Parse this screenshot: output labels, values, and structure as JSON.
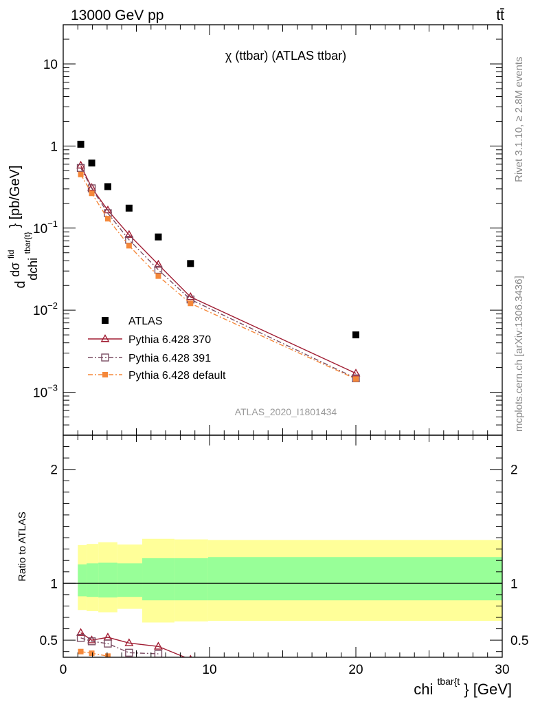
{
  "header": {
    "left": "13000 GeV pp",
    "right": "tt̄"
  },
  "side_labels": {
    "rivet": "Rivet 3.1.10, ≥ 2.8M events",
    "mcplots": "mcplots.cern.ch [arXiv:1306.3436]"
  },
  "chart_data": [
    {
      "type": "scatter",
      "title": "χ (ttbar) (ATLAS ttbar)",
      "watermark": "ATLAS_2020_I1801434",
      "ylabel_parts": {
        "d": "d",
        "sigma": "dσ",
        "fid": "fid",
        "dchi": "dchi",
        "sub": "tbar{t}",
        "unit": "} [pb/GeV]"
      },
      "xscale": "linear",
      "yscale": "log",
      "xlim": [
        0,
        30
      ],
      "ylim": [
        0.0003,
        30
      ],
      "x_ticks": [
        0,
        10,
        20,
        30
      ],
      "y_ticks": [
        {
          "value": 0.001,
          "base": "10",
          "exp": "−3"
        },
        {
          "value": 0.01,
          "base": "10",
          "exp": "−2"
        },
        {
          "value": 0.1,
          "base": "10",
          "exp": "−1"
        },
        {
          "value": 1,
          "label": "1"
        },
        {
          "value": 10,
          "label": "10"
        }
      ],
      "legend_position": "lower-left",
      "series": [
        {
          "name": "ATLAS",
          "color": "#000000",
          "marker": "filled-square",
          "line": "none",
          "x": [
            1.2,
            1.95,
            3.05,
            4.5,
            6.5,
            8.7,
            20.0
          ],
          "y": [
            1.05,
            0.62,
            0.32,
            0.175,
            0.078,
            0.037,
            0.005
          ]
        },
        {
          "name": "Pythia 6.428 370",
          "color": "#a01c32",
          "marker": "open-triangle",
          "line": "solid",
          "x": [
            1.2,
            1.95,
            3.05,
            4.5,
            6.5,
            8.7,
            20.0
          ],
          "y": [
            0.58,
            0.31,
            0.165,
            0.083,
            0.036,
            0.0145,
            0.0017
          ]
        },
        {
          "name": "Pythia 6.428 391",
          "color": "#7a4d63",
          "marker": "open-square",
          "line": "dashdot",
          "x": [
            1.2,
            1.95,
            3.05,
            4.5,
            6.5,
            8.7,
            20.0
          ],
          "y": [
            0.54,
            0.305,
            0.152,
            0.072,
            0.031,
            0.0135,
            0.00148
          ]
        },
        {
          "name": "Pythia 6.428 default",
          "color": "#f5883a",
          "marker": "filled-circle",
          "line": "dashdot",
          "x": [
            1.2,
            1.95,
            3.05,
            4.5,
            6.5,
            8.7,
            20.0
          ],
          "y": [
            0.45,
            0.265,
            0.13,
            0.061,
            0.026,
            0.0121,
            0.00145
          ]
        }
      ]
    },
    {
      "type": "line",
      "ylabel": "Ratio to ATLAS",
      "xlabel_parts": {
        "base": "chi",
        "sup": "tbar{t",
        "unit": "} [GeV]"
      },
      "xlim": [
        0,
        30
      ],
      "ylim": [
        0.35,
        2.3
      ],
      "x_ticks": [
        0,
        10,
        20,
        30
      ],
      "y_ticks": [
        0.5,
        1,
        2
      ],
      "reference": 1,
      "bands": {
        "bin_edges": [
          1.0,
          1.6,
          2.4,
          3.7,
          5.4,
          7.6,
          9.9,
          30.0
        ],
        "stat_lo": [
          0.885,
          0.88,
          0.875,
          0.88,
          0.85,
          0.85,
          0.85
        ],
        "stat_hi": [
          1.165,
          1.175,
          1.18,
          1.175,
          1.22,
          1.22,
          1.23
        ],
        "total_lo": [
          0.765,
          0.755,
          0.745,
          0.775,
          0.655,
          0.665,
          0.67
        ],
        "total_hi": [
          1.335,
          1.345,
          1.36,
          1.34,
          1.39,
          1.385,
          1.38
        ],
        "stat_color": "#98ff98",
        "total_color": "#ffff99"
      },
      "series": [
        {
          "name": "Pythia 6.428 370",
          "color": "#a01c32",
          "marker": "open-triangle",
          "line": "solid",
          "x": [
            1.2,
            1.95,
            3.05,
            4.5,
            6.5,
            8.7
          ],
          "y": [
            0.565,
            0.5,
            0.525,
            0.475,
            0.445,
            0.33
          ]
        },
        {
          "name": "Pythia 6.428 391",
          "color": "#7a4d63",
          "marker": "open-square",
          "line": "dashdot",
          "x": [
            1.2,
            1.95,
            3.05,
            4.5,
            6.5
          ],
          "y": [
            0.52,
            0.49,
            0.47,
            0.39,
            0.38
          ]
        },
        {
          "name": "Pythia 6.428 default",
          "color": "#f5883a",
          "marker": "filled-circle",
          "line": "dashdot",
          "x": [
            1.2,
            1.95,
            3.05
          ],
          "y": [
            0.4,
            0.385,
            0.36
          ]
        }
      ]
    }
  ]
}
